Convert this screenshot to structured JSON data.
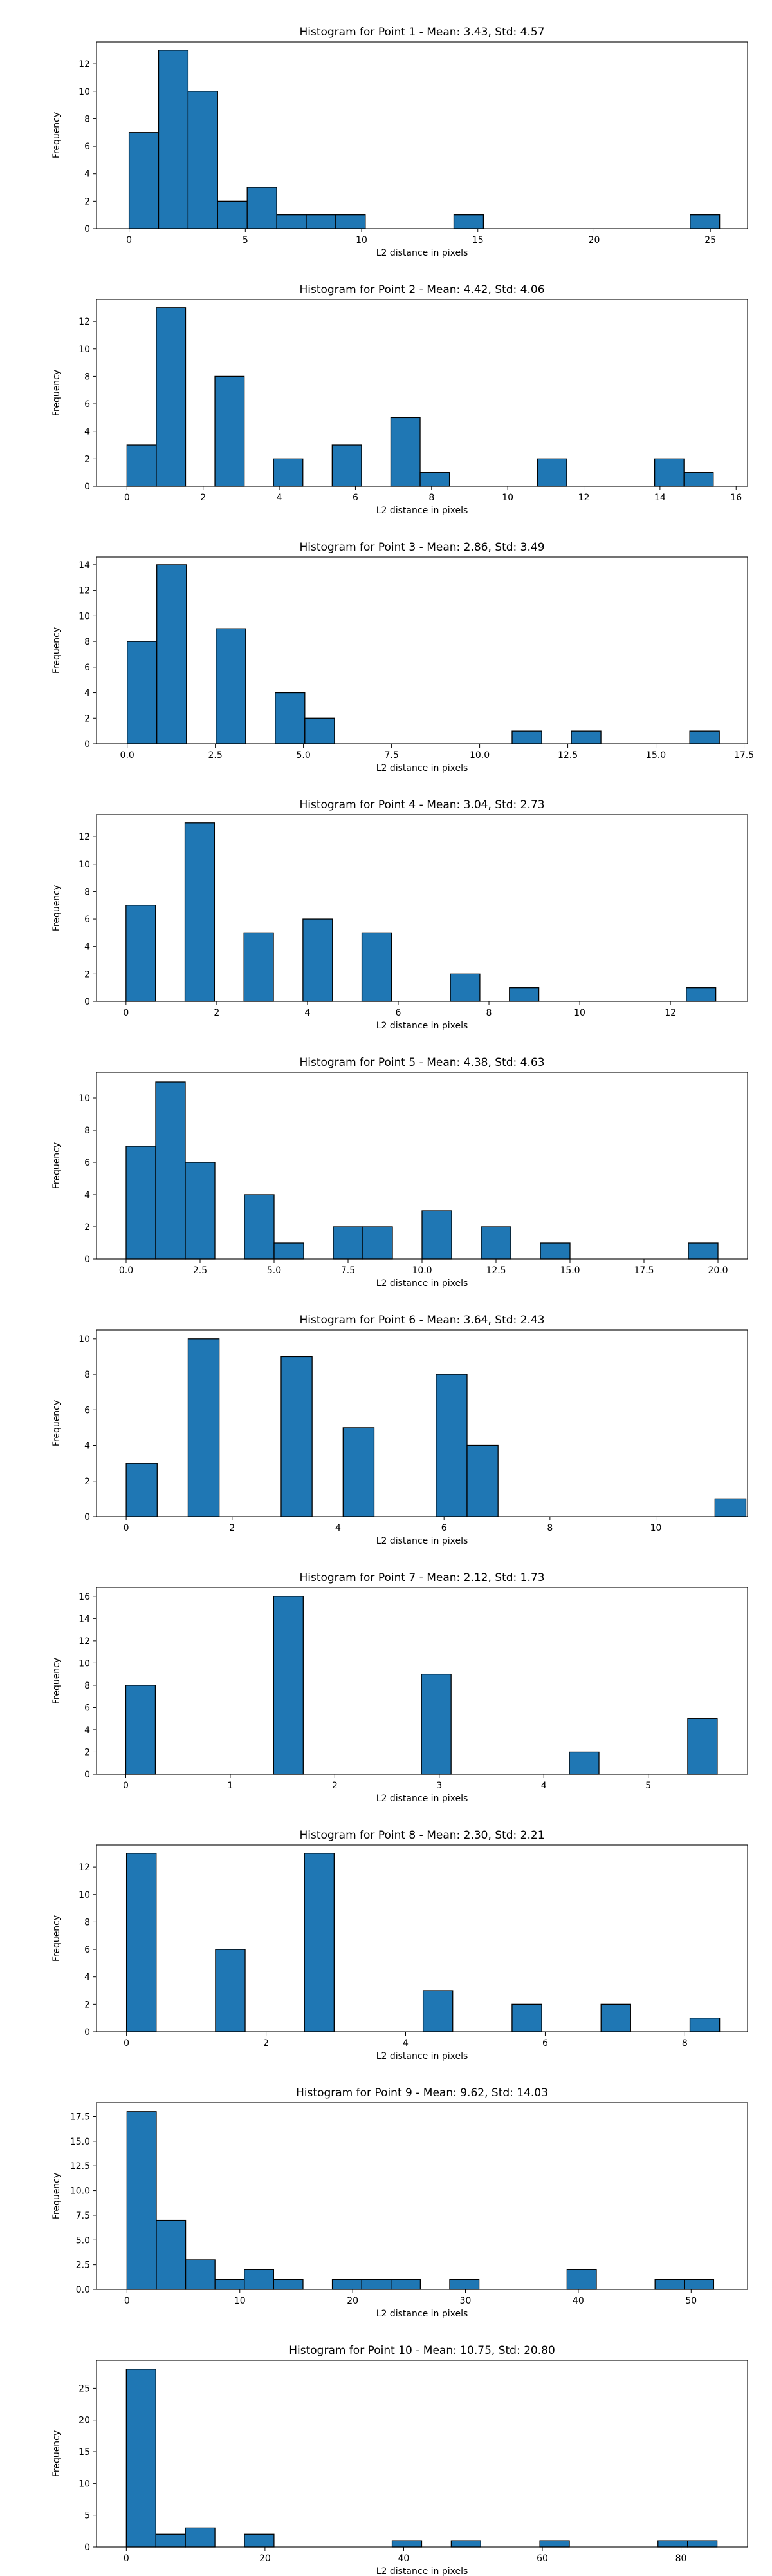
{
  "colors": {
    "bar": "#1f77b4",
    "edge": "#000000",
    "frame": "#000000",
    "background": "#ffffff"
  },
  "chart_data": [
    {
      "type": "bar",
      "title": "Histogram for Point 1 - Mean: 3.43, Std: 4.57",
      "xlabel": "L2 distance in pixels",
      "ylabel": "Frequency",
      "xlim": [
        -1.4,
        26.6
      ],
      "ylim": [
        0,
        13.6
      ],
      "xticks": [
        0,
        5,
        10,
        15,
        20,
        25
      ],
      "xtick_labels": [
        "0",
        "5",
        "10",
        "15",
        "20",
        "25"
      ],
      "yticks": [
        0,
        2,
        4,
        6,
        8,
        10,
        12
      ],
      "ytick_labels": [
        "0",
        "2",
        "4",
        "6",
        "8",
        "10",
        "12"
      ],
      "bin_edges": [
        0.0,
        1.27,
        2.54,
        3.81,
        5.08,
        6.35,
        7.62,
        8.89,
        10.16,
        11.43,
        12.7,
        13.97,
        15.24,
        16.51,
        17.78,
        19.05,
        20.32,
        21.59,
        22.86,
        24.13,
        25.4
      ],
      "values": [
        7,
        13,
        10,
        2,
        3,
        1,
        1,
        1,
        0,
        0,
        0,
        1,
        0,
        0,
        0,
        0,
        0,
        0,
        0,
        1
      ]
    },
    {
      "type": "bar",
      "title": "Histogram for Point 2 - Mean: 4.42, Std: 4.06",
      "xlabel": "L2 distance in pixels",
      "ylabel": "Frequency",
      "xlim": [
        -0.8,
        16.3
      ],
      "ylim": [
        0,
        13.6
      ],
      "xticks": [
        0,
        2,
        4,
        6,
        8,
        10,
        12,
        14,
        16
      ],
      "xtick_labels": [
        "0",
        "2",
        "4",
        "6",
        "8",
        "10",
        "12",
        "14",
        "16"
      ],
      "yticks": [
        0,
        2,
        4,
        6,
        8,
        10,
        12
      ],
      "ytick_labels": [
        "0",
        "2",
        "4",
        "6",
        "8",
        "10",
        "12"
      ],
      "bin_edges": [
        0.0,
        0.77,
        1.54,
        2.31,
        3.08,
        3.85,
        4.62,
        5.39,
        6.16,
        6.93,
        7.7,
        8.47,
        9.24,
        10.01,
        10.78,
        11.55,
        12.32,
        13.09,
        13.86,
        14.63,
        15.4
      ],
      "values": [
        3,
        13,
        0,
        8,
        0,
        2,
        0,
        3,
        0,
        5,
        1,
        0,
        0,
        0,
        2,
        0,
        0,
        0,
        2,
        1
      ]
    },
    {
      "type": "bar",
      "title": "Histogram for Point 3 - Mean: 2.86, Std: 3.49",
      "xlabel": "L2 distance in pixels",
      "ylabel": "Frequency",
      "xlim": [
        -0.87,
        17.6
      ],
      "ylim": [
        0,
        14.6
      ],
      "xticks": [
        0,
        2.5,
        5,
        7.5,
        10,
        12.5,
        15,
        17.5
      ],
      "xtick_labels": [
        "0.0",
        "2.5",
        "5.0",
        "7.5",
        "10.0",
        "12.5",
        "15.0",
        "17.5"
      ],
      "yticks": [
        0,
        2,
        4,
        6,
        8,
        10,
        12,
        14
      ],
      "ytick_labels": [
        "0",
        "2",
        "4",
        "6",
        "8",
        "10",
        "12",
        "14"
      ],
      "bin_edges": [
        0.0,
        0.84,
        1.68,
        2.52,
        3.36,
        4.2,
        5.04,
        5.88,
        6.72,
        7.56,
        8.4,
        9.24,
        10.08,
        10.92,
        11.76,
        12.6,
        13.44,
        14.28,
        15.12,
        15.96,
        16.8
      ],
      "values": [
        8,
        14,
        0,
        9,
        0,
        4,
        2,
        0,
        0,
        0,
        0,
        0,
        0,
        1,
        0,
        1,
        0,
        0,
        0,
        1
      ]
    },
    {
      "type": "bar",
      "title": "Histogram for Point 4 - Mean: 3.04, Std: 2.73",
      "xlabel": "L2 distance in pixels",
      "ylabel": "Frequency",
      "xlim": [
        -0.65,
        13.7
      ],
      "ylim": [
        0,
        13.6
      ],
      "xticks": [
        0,
        2,
        4,
        6,
        8,
        10,
        12
      ],
      "xtick_labels": [
        "0",
        "2",
        "4",
        "6",
        "8",
        "10",
        "12"
      ],
      "yticks": [
        0,
        2,
        4,
        6,
        8,
        10,
        12
      ],
      "ytick_labels": [
        "0",
        "2",
        "4",
        "6",
        "8",
        "10",
        "12"
      ],
      "bin_edges": [
        0.0,
        0.65,
        1.3,
        1.95,
        2.6,
        3.25,
        3.9,
        4.55,
        5.2,
        5.85,
        6.5,
        7.15,
        7.8,
        8.45,
        9.1,
        9.75,
        10.4,
        11.05,
        11.7,
        12.35,
        13.0
      ],
      "values": [
        7,
        0,
        13,
        0,
        5,
        0,
        6,
        0,
        5,
        0,
        0,
        2,
        0,
        1,
        0,
        0,
        0,
        0,
        0,
        1
      ]
    },
    {
      "type": "bar",
      "title": "Histogram for Point 5 - Mean: 4.38, Std: 4.63",
      "xlabel": "L2 distance in pixels",
      "ylabel": "Frequency",
      "xlim": [
        -1.0,
        21.0
      ],
      "ylim": [
        0,
        11.6
      ],
      "xticks": [
        0,
        2.5,
        5,
        7.5,
        10,
        12.5,
        15,
        17.5,
        20
      ],
      "xtick_labels": [
        "0.0",
        "2.5",
        "5.0",
        "7.5",
        "10.0",
        "12.5",
        "15.0",
        "17.5",
        "20.0"
      ],
      "yticks": [
        0,
        2,
        4,
        6,
        8,
        10
      ],
      "ytick_labels": [
        "0",
        "2",
        "4",
        "6",
        "8",
        "10"
      ],
      "bin_edges": [
        0.0,
        1.0,
        2.0,
        3.0,
        4.0,
        5.0,
        6.0,
        7.0,
        8.0,
        9.0,
        10.0,
        11.0,
        12.0,
        13.0,
        14.0,
        15.0,
        16.0,
        17.0,
        18.0,
        19.0,
        20.0
      ],
      "values": [
        7,
        11,
        6,
        0,
        4,
        1,
        0,
        2,
        2,
        0,
        3,
        0,
        2,
        0,
        1,
        0,
        0,
        0,
        0,
        1
      ]
    },
    {
      "type": "bar",
      "title": "Histogram for Point 6 - Mean: 3.64, Std: 2.43",
      "xlabel": "L2 distance in pixels",
      "ylabel": "Frequency",
      "xlim": [
        -0.56,
        11.73
      ],
      "ylim": [
        0,
        10.5
      ],
      "xticks": [
        0,
        2,
        4,
        6,
        8,
        10
      ],
      "xtick_labels": [
        "0",
        "2",
        "4",
        "6",
        "8",
        "10"
      ],
      "yticks": [
        0,
        2,
        4,
        6,
        8,
        10
      ],
      "ytick_labels": [
        "0",
        "2",
        "4",
        "6",
        "8",
        "10"
      ],
      "bin_edges": [
        0.0,
        0.585,
        1.17,
        1.755,
        2.34,
        2.925,
        3.51,
        4.095,
        4.68,
        5.265,
        5.85,
        6.435,
        7.02,
        7.605,
        8.19,
        8.775,
        9.36,
        9.945,
        10.53,
        11.115,
        11.7
      ],
      "values": [
        3,
        0,
        10,
        0,
        0,
        9,
        0,
        5,
        0,
        0,
        8,
        4,
        0,
        0,
        0,
        0,
        0,
        0,
        0,
        1
      ]
    },
    {
      "type": "bar",
      "title": "Histogram for Point 7 - Mean: 2.12, Std: 1.73",
      "xlabel": "L2 distance in pixels",
      "ylabel": "Frequency",
      "xlim": [
        -0.28,
        5.95
      ],
      "ylim": [
        0,
        16.8
      ],
      "xticks": [
        0,
        1,
        2,
        3,
        4,
        5
      ],
      "xtick_labels": [
        "0",
        "1",
        "2",
        "3",
        "4",
        "5"
      ],
      "yticks": [
        0,
        2,
        4,
        6,
        8,
        10,
        12,
        14,
        16
      ],
      "ytick_labels": [
        "0",
        "2",
        "4",
        "6",
        "8",
        "10",
        "12",
        "14",
        "16"
      ],
      "bin_edges": [
        0.0,
        0.283,
        0.566,
        0.849,
        1.132,
        1.415,
        1.698,
        1.981,
        2.264,
        2.547,
        2.83,
        3.113,
        3.396,
        3.679,
        3.962,
        4.245,
        4.528,
        4.811,
        5.094,
        5.377,
        5.66
      ],
      "values": [
        8,
        0,
        0,
        0,
        0,
        16,
        0,
        0,
        0,
        0,
        9,
        0,
        0,
        0,
        0,
        2,
        0,
        0,
        0,
        5
      ]
    },
    {
      "type": "bar",
      "title": "Histogram for Point 8 - Mean: 2.30, Std: 2.21",
      "xlabel": "L2 distance in pixels",
      "ylabel": "Frequency",
      "xlim": [
        -0.43,
        8.9
      ],
      "ylim": [
        0,
        13.6
      ],
      "xticks": [
        0,
        2,
        4,
        6,
        8
      ],
      "xtick_labels": [
        "0",
        "2",
        "4",
        "6",
        "8"
      ],
      "yticks": [
        0,
        2,
        4,
        6,
        8,
        10,
        12
      ],
      "ytick_labels": [
        "0",
        "2",
        "4",
        "6",
        "8",
        "10",
        "12"
      ],
      "bin_edges": [
        0.0,
        0.425,
        0.85,
        1.275,
        1.7,
        2.125,
        2.55,
        2.975,
        3.4,
        3.825,
        4.25,
        4.675,
        5.1,
        5.525,
        5.95,
        6.375,
        6.8,
        7.225,
        7.65,
        8.075,
        8.5
      ],
      "values": [
        13,
        0,
        0,
        6,
        0,
        0,
        13,
        0,
        0,
        0,
        3,
        0,
        0,
        2,
        0,
        0,
        2,
        0,
        0,
        1
      ]
    },
    {
      "type": "bar",
      "title": "Histogram for Point 9 - Mean: 9.62, Std: 14.03",
      "xlabel": "L2 distance in pixels",
      "ylabel": "Frequency",
      "xlim": [
        -2.7,
        55.0
      ],
      "ylim": [
        0,
        18.9
      ],
      "xticks": [
        0,
        10,
        20,
        30,
        40,
        50
      ],
      "xtick_labels": [
        "0",
        "10",
        "20",
        "30",
        "40",
        "50"
      ],
      "yticks": [
        0,
        2.5,
        5,
        7.5,
        10,
        12.5,
        15,
        17.5
      ],
      "ytick_labels": [
        "0.0",
        "2.5",
        "5.0",
        "7.5",
        "10.0",
        "12.5",
        "15.0",
        "17.5"
      ],
      "bin_edges": [
        0.0,
        2.6,
        5.2,
        7.8,
        10.4,
        13.0,
        15.6,
        18.2,
        20.8,
        23.4,
        26.0,
        28.6,
        31.2,
        33.8,
        36.4,
        39.0,
        41.6,
        44.2,
        46.8,
        49.4,
        52.0
      ],
      "values": [
        18,
        7,
        3,
        1,
        2,
        1,
        0,
        1,
        1,
        1,
        0,
        1,
        0,
        0,
        0,
        2,
        0,
        0,
        1,
        1
      ]
    },
    {
      "type": "bar",
      "title": "Histogram for Point 10 - Mean: 10.75, Std: 20.80",
      "xlabel": "L2 distance in pixels",
      "ylabel": "Frequency",
      "xlim": [
        -4.3,
        89.6
      ],
      "ylim": [
        0,
        29.4
      ],
      "xticks": [
        0,
        20,
        40,
        60,
        80
      ],
      "xtick_labels": [
        "0",
        "20",
        "40",
        "60",
        "80"
      ],
      "yticks": [
        0,
        5,
        10,
        15,
        20,
        25
      ],
      "ytick_labels": [
        "0",
        "5",
        "10",
        "15",
        "20",
        "25"
      ],
      "bin_edges": [
        0.0,
        4.26,
        8.52,
        12.78,
        17.04,
        21.3,
        25.56,
        29.82,
        34.08,
        38.34,
        42.6,
        46.86,
        51.12,
        55.38,
        59.64,
        63.9,
        68.16,
        72.42,
        76.68,
        80.94,
        85.2
      ],
      "values": [
        28,
        2,
        3,
        0,
        2,
        0,
        0,
        0,
        0,
        1,
        0,
        1,
        0,
        0,
        1,
        0,
        0,
        0,
        1,
        1
      ]
    }
  ]
}
